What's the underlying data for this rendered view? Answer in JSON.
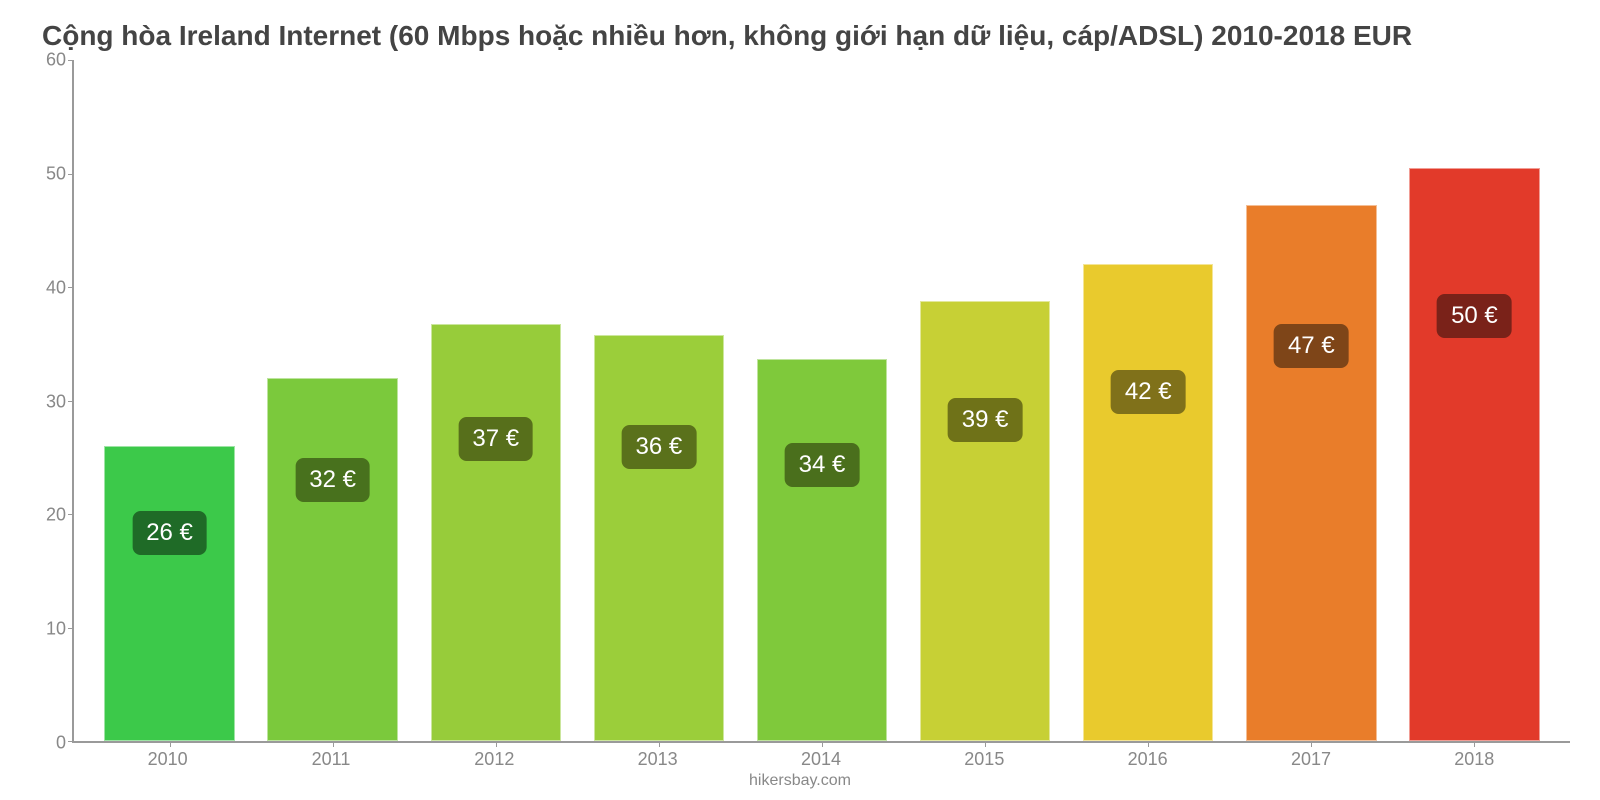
{
  "chart": {
    "type": "bar",
    "title": "Cộng hòa Ireland Internet (60 Mbps hoặc nhiều hơn, không giới hạn dữ liệu, cáp/ADSL) 2010-2018 EUR",
    "title_color": "#444444",
    "title_fontsize": 28,
    "background_color": "#ffffff",
    "axis_color": "#9a9a9a",
    "label_color": "#888888",
    "label_fontsize": 18,
    "ylim": [
      0,
      60
    ],
    "ytick_step": 10,
    "yticks": [
      0,
      10,
      20,
      30,
      40,
      50,
      60
    ],
    "categories": [
      "2010",
      "2011",
      "2012",
      "2013",
      "2014",
      "2015",
      "2016",
      "2017",
      "2018"
    ],
    "badge_labels": [
      "26 €",
      "32 €",
      "37 €",
      "36 €",
      "34 €",
      "39 €",
      "42 €",
      "47 €",
      "50 €"
    ],
    "values": [
      26.0,
      32.0,
      36.7,
      35.8,
      33.7,
      38.8,
      42.0,
      47.2,
      50.5
    ],
    "bar_colors": [
      "#3cc94a",
      "#7bc93c",
      "#97cc3a",
      "#9bce3a",
      "#7fc93b",
      "#c7d035",
      "#e9ca2d",
      "#e97d2a",
      "#e23a2a"
    ],
    "badge_colors": [
      "#1f6b27",
      "#48711d",
      "#576f1b",
      "#5a711b",
      "#4a6f1c",
      "#6f7218",
      "#80711a",
      "#7e4518",
      "#7a2219"
    ],
    "badge_fontsize": 24,
    "badge_text_color": "#ffffff",
    "bar_width_ratio": 0.8,
    "footer": "hikersbay.com"
  }
}
